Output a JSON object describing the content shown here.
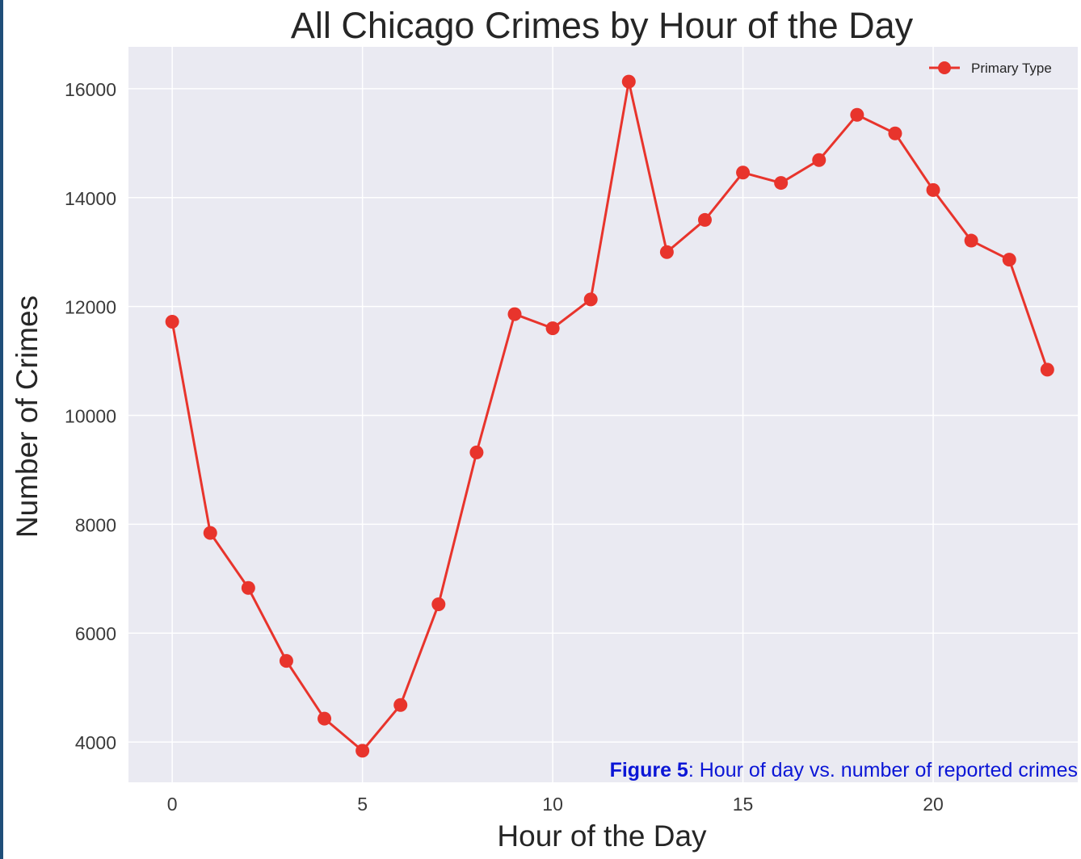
{
  "colors": {
    "plot_background": "#eaeaf2",
    "grid": "#ffffff",
    "series": "#e8342c",
    "caption": "#0b16d6",
    "frame_left": "#1f4e79"
  },
  "caption": {
    "label": "Figure 5",
    "text": ": Hour of day vs. number of reported crimes"
  },
  "chart_data": {
    "type": "line",
    "title": "All Chicago Crimes by Hour of the Day",
    "xlabel": "Hour of the Day",
    "ylabel": "Number of Crimes",
    "xlim": [
      -1.15,
      23.8
    ],
    "ylim": [
      3260,
      16770
    ],
    "xticks": [
      0,
      5,
      10,
      15,
      20
    ],
    "yticks": [
      4000,
      6000,
      8000,
      10000,
      12000,
      14000,
      16000
    ],
    "grid": true,
    "legend": {
      "placement": "top-right",
      "marker": "circle"
    },
    "x": [
      0,
      1,
      2,
      3,
      4,
      5,
      6,
      7,
      8,
      9,
      10,
      11,
      12,
      13,
      14,
      15,
      16,
      17,
      18,
      19,
      20,
      21,
      22,
      23
    ],
    "series": [
      {
        "name": "Primary Type",
        "values": [
          11720,
          7840,
          6830,
          5490,
          4430,
          3840,
          4680,
          6530,
          9320,
          11860,
          11600,
          12130,
          16130,
          13000,
          13590,
          14460,
          14270,
          14690,
          15520,
          15180,
          14140,
          13210,
          12860,
          10840
        ]
      }
    ]
  }
}
